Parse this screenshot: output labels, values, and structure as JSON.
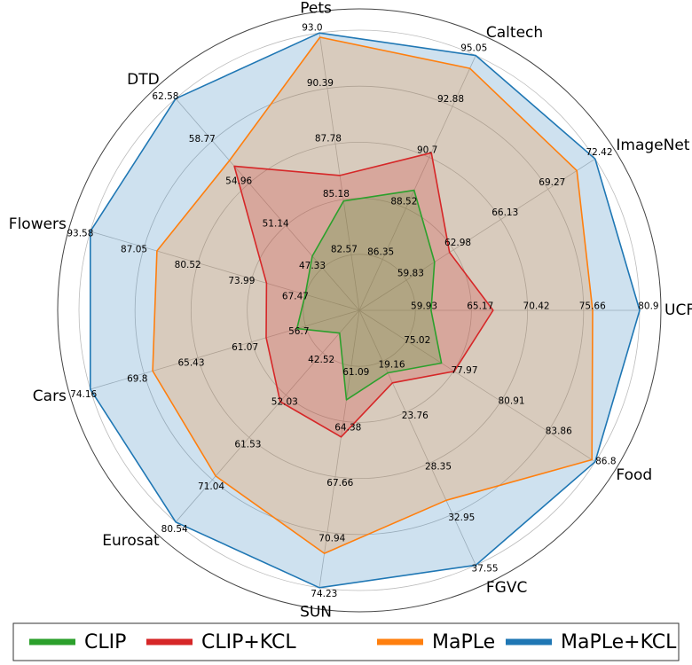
{
  "chart_data": {
    "type": "radar",
    "categories": [
      "UCF",
      "ImageNet",
      "Caltech",
      "Pets",
      "DTD",
      "Flowers",
      "Cars",
      "Eurosat",
      "SUN",
      "FGVC",
      "Food"
    ],
    "axes": [
      {
        "lim": [
          54.69,
          80.9
        ],
        "ticks": [
          59.93,
          65.17,
          70.42,
          75.66,
          80.9
        ]
      },
      {
        "lim": [
          56.68,
          72.42
        ],
        "ticks": [
          59.83,
          62.98,
          66.13,
          69.27,
          72.42
        ]
      },
      {
        "lim": [
          84.18,
          95.05
        ],
        "ticks": [
          86.35,
          88.52,
          90.7,
          92.88,
          95.05
        ]
      },
      {
        "lim": [
          79.96,
          93.0
        ],
        "ticks": [
          82.57,
          85.18,
          87.78,
          90.39,
          {
            "value": 93.0,
            "label": "93.0"
          }
        ]
      },
      {
        "lim": [
          43.52,
          62.58
        ],
        "ticks": [
          47.33,
          51.14,
          54.96,
          58.77,
          62.58
        ]
      },
      {
        "lim": [
          60.94,
          93.58
        ],
        "ticks": [
          67.47,
          73.99,
          80.52,
          87.05,
          93.58
        ]
      },
      {
        "lim": [
          52.34,
          74.16
        ],
        "ticks": [
          56.7,
          61.07,
          65.43,
          69.8,
          74.16
        ]
      },
      {
        "lim": [
          33.0,
          80.54
        ],
        "ticks": [
          42.52,
          52.03,
          61.53,
          71.04,
          80.54
        ]
      },
      {
        "lim": [
          57.8,
          74.23
        ],
        "ticks": [
          61.09,
          64.38,
          67.66,
          70.94,
          74.23
        ]
      },
      {
        "lim": [
          14.56,
          37.55
        ],
        "ticks": [
          19.16,
          23.76,
          28.35,
          32.95,
          37.55
        ]
      },
      {
        "lim": [
          72.07,
          86.8
        ],
        "ticks": [
          75.02,
          77.97,
          80.91,
          83.86,
          86.8
        ]
      }
    ],
    "series": [
      {
        "name": "CLIP",
        "color": "#2ca02c",
        "values": [
          61.4,
          61.7,
          89.3,
          85.1,
          48.4,
          67.5,
          57.4,
          38.1,
          63.1,
          20.2,
          77.2
        ]
      },
      {
        "name": "CLIP+KCL",
        "color": "#d62728",
        "values": [
          67.2,
          62.7,
          90.9,
          86.3,
          56.5,
          72.2,
          59.9,
          53.5,
          65.3,
          21.1,
          78.0
        ]
      },
      {
        "name": "MaPLe",
        "color": "#ff7f0e",
        "values": [
          76.5,
          71.2,
          94.5,
          92.8,
          57.0,
          85.5,
          69.1,
          70.2,
          72.2,
          31.7,
          86.6
        ]
      },
      {
        "name": "MaPLe+KCL",
        "color": "#1f77b4",
        "values": [
          80.9,
          72.42,
          95.05,
          93.0,
          62.58,
          93.58,
          74.16,
          80.54,
          74.23,
          37.55,
          86.8
        ]
      }
    ],
    "legend": "bottom"
  }
}
